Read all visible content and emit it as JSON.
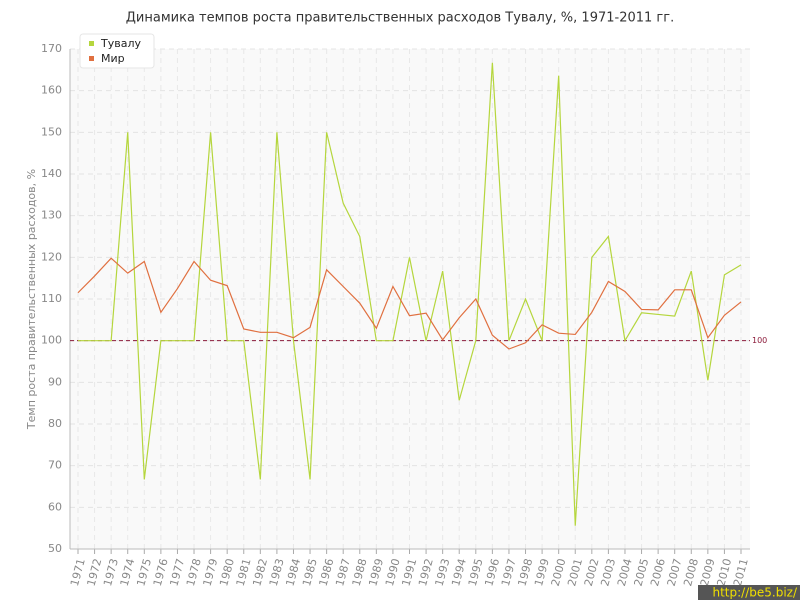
{
  "chart_data": {
    "type": "line",
    "title": "Динамика темпов роста правительственных расходов Тувалу, %, 1971-2011 гг.",
    "y_label": "Темп роста правительственных расходов, %",
    "categories": [
      "1971",
      "1972",
      "1973",
      "1974",
      "1975",
      "1976",
      "1977",
      "1978",
      "1979",
      "1980",
      "1981",
      "1982",
      "1983",
      "1984",
      "1985",
      "1986",
      "1987",
      "1988",
      "1989",
      "1990",
      "1991",
      "1992",
      "1993",
      "1994",
      "1995",
      "1996",
      "1997",
      "1998",
      "1999",
      "2000",
      "2001",
      "2002",
      "2003",
      "2004",
      "2005",
      "2006",
      "2007",
      "2008",
      "2009",
      "2010",
      "2011"
    ],
    "series": [
      {
        "name": "Тувалу",
        "color": "#b5d63d",
        "values": [
          100,
          100,
          100,
          150,
          66.7,
          100,
          100,
          100,
          150,
          100,
          100,
          66.7,
          150,
          100,
          66.7,
          150,
          133,
          125,
          100,
          100,
          120,
          100,
          116.7,
          85.7,
          100,
          166.7,
          100,
          110,
          100,
          163.6,
          55.6,
          120,
          125,
          100,
          106.7,
          106.3,
          105.9,
          116.7,
          90.5,
          115.8,
          118.2
        ]
      },
      {
        "name": "Мир",
        "color": "#e07040",
        "values": [
          111.5,
          115.5,
          119.8,
          116.2,
          119,
          106.8,
          112.5,
          119,
          114.5,
          113.2,
          102.8,
          102,
          102,
          100.7,
          103.2,
          117,
          113,
          109,
          103,
          113,
          106,
          106.6,
          100.2,
          105.5,
          110,
          101.3,
          98,
          99.5,
          103.8,
          101.8,
          101.5,
          106.8,
          114.2,
          111.8,
          107.5,
          107.4,
          112.2,
          112.2,
          100.7,
          106.1,
          109.3
        ]
      }
    ],
    "ylim": [
      50,
      170
    ],
    "yticks": [
      50,
      60,
      70,
      80,
      90,
      100,
      110,
      120,
      130,
      140,
      150,
      160,
      170
    ],
    "grid": true,
    "legend": "top-left",
    "reference_line": {
      "value": 100,
      "color": "#8b1a3a"
    },
    "watermark": "http://be5.biz/"
  }
}
